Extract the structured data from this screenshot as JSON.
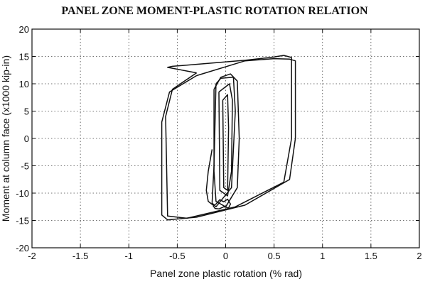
{
  "chart_data": {
    "type": "line",
    "title": "PANEL ZONE MOMENT-PLASTIC ROTATION RELATION",
    "xlabel": "Panel zone plastic rotation (% rad)",
    "ylabel": "Moment at column face (x1000 kip-in)",
    "xlim": [
      -2,
      2
    ],
    "ylim": [
      -20,
      20
    ],
    "xticks": [
      -2,
      -1.5,
      -1,
      -0.5,
      0,
      0.5,
      1,
      1.5,
      2
    ],
    "yticks": [
      -20,
      -15,
      -10,
      -5,
      0,
      5,
      10,
      15,
      20
    ],
    "xtick_labels": [
      "-2",
      "-1.5",
      "-1",
      "-0.5",
      "0",
      "0.5",
      "1",
      "1.5",
      "2"
    ],
    "ytick_labels": [
      "-20",
      "-15",
      "-10",
      "-5",
      "0",
      "5",
      "10",
      "15",
      "20"
    ],
    "grid": true,
    "legend": "none",
    "series": [
      {
        "x": [
          -0.3,
          -0.55,
          -0.62,
          -0.6,
          -0.4,
          0.1,
          0.6,
          0.68,
          0.68,
          0.6,
          0.5,
          0.2,
          -0.55,
          -0.6,
          -0.3
        ],
        "y": [
          12.0,
          9.0,
          4.0,
          -14.2,
          -14.6,
          -12.5,
          -8.0,
          0.0,
          14.8,
          15.2,
          14.9,
          14.3,
          13.2,
          13.0,
          12.0
        ]
      },
      {
        "x": [
          -0.3,
          -0.58,
          -0.66,
          -0.66,
          -0.6,
          -0.3,
          0.2,
          0.66,
          0.72,
          0.72,
          0.66,
          0.5,
          0.2,
          -0.3
        ],
        "y": [
          11.5,
          8.5,
          3.0,
          -14.0,
          -14.9,
          -14.4,
          -12.2,
          -7.5,
          0.0,
          14.2,
          14.5,
          14.6,
          14.2,
          11.5
        ]
      },
      {
        "x": [
          -0.12,
          -0.12,
          -0.1,
          0.0,
          0.12,
          0.14,
          0.12,
          0.05,
          -0.05,
          -0.12
        ],
        "y": [
          9.0,
          -6.0,
          -11.5,
          -12.5,
          -9.0,
          0.0,
          10.5,
          11.8,
          11.2,
          9.0
        ]
      },
      {
        "x": [
          -0.1,
          -0.05,
          0.08,
          0.1,
          0.06,
          -0.1,
          -0.14,
          -0.12,
          -0.1
        ],
        "y": [
          10.0,
          11.0,
          11.2,
          5.0,
          -9.0,
          -12.5,
          -11.8,
          -5.0,
          10.0
        ]
      },
      {
        "x": [
          -0.07,
          -0.06,
          0.02,
          0.06,
          0.07,
          0.04,
          -0.07
        ],
        "y": [
          8.5,
          -9.5,
          -10.5,
          -6.0,
          7.0,
          10.0,
          8.5
        ]
      },
      {
        "x": [
          -0.03,
          -0.02,
          0.02,
          0.03,
          0.02,
          -0.03
        ],
        "y": [
          7.0,
          -9.0,
          -9.5,
          2.0,
          8.0,
          7.0
        ]
      },
      {
        "x": [
          -0.13,
          -0.1,
          -0.06,
          -0.02,
          0.02,
          0.05,
          0.03,
          -0.02,
          -0.07,
          -0.11,
          -0.13
        ],
        "y": [
          -12.3,
          -12.0,
          -11.2,
          -11.6,
          -11.1,
          -12.0,
          -12.7,
          -12.5,
          -12.9,
          -12.8,
          -12.3
        ]
      },
      {
        "x": [
          -0.14,
          -0.18,
          -0.2,
          -0.18,
          -0.13
        ],
        "y": [
          -2.0,
          -6.0,
          -9.5,
          -11.5,
          -12.2
        ]
      }
    ]
  }
}
